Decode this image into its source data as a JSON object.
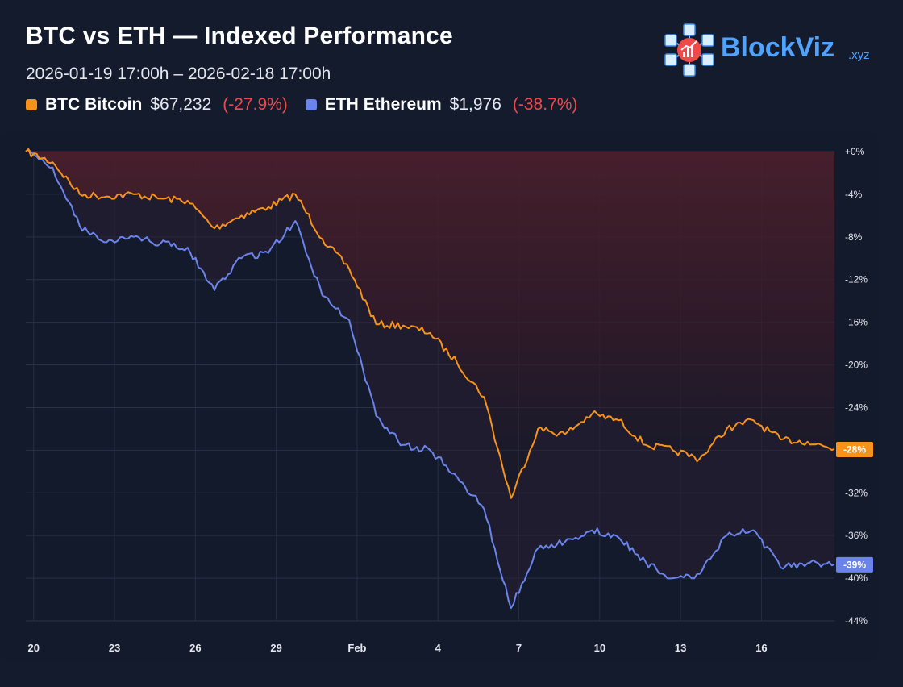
{
  "header": {
    "title": "BTC vs ETH — Indexed Performance",
    "subtitle": "2026-01-19 17:00h – 2026-02-18 17:00h"
  },
  "legend": [
    {
      "symbol": "BTC",
      "name": "Bitcoin",
      "price": "$67,232",
      "change": "(-27.9%)",
      "color": "#f7931a"
    },
    {
      "symbol": "ETH",
      "name": "Ethereum",
      "price": "$1,976",
      "change": "(-38.7%)",
      "color": "#6b84ec"
    }
  ],
  "brand": {
    "name": "BlockViz",
    "tld": ".xyz",
    "color": "#4fa3ff",
    "icon": "blockchain-network-icon"
  },
  "chart_data": {
    "type": "line",
    "y_unit": "%",
    "ylim": [
      -44,
      0
    ],
    "y_ticks": [
      0,
      -4,
      -8,
      -12,
      -16,
      -20,
      -24,
      -28,
      -32,
      -36,
      -40,
      -44
    ],
    "y_tick_labels": [
      "+0%",
      "-4%",
      "-8%",
      "-12%",
      "-16%",
      "-20%",
      "-24%",
      "-28%",
      "-32%",
      "-36%",
      "-40%",
      "-44%"
    ],
    "xlim": [
      "2026-01-19",
      "2026-02-18"
    ],
    "x_ticks": [
      {
        "date": "2026-01-20",
        "label": "20"
      },
      {
        "date": "2026-01-23",
        "label": "23"
      },
      {
        "date": "2026-01-26",
        "label": "26"
      },
      {
        "date": "2026-01-29",
        "label": "29"
      },
      {
        "date": "2026-02-01",
        "label": "Feb"
      },
      {
        "date": "2026-02-04",
        "label": "4"
      },
      {
        "date": "2026-02-07",
        "label": "7"
      },
      {
        "date": "2026-02-10",
        "label": "10"
      },
      {
        "date": "2026-02-13",
        "label": "13"
      },
      {
        "date": "2026-02-16",
        "label": "16"
      }
    ],
    "grid": true,
    "series": [
      {
        "name": "BTC",
        "color": "#f7931a",
        "end_label": "-28%",
        "x": [
          "2026-01-19",
          "2026-01-20",
          "2026-01-21",
          "2026-01-22",
          "2026-01-23",
          "2026-01-24",
          "2026-01-25",
          "2026-01-26",
          "2026-01-27",
          "2026-01-28",
          "2026-01-29",
          "2026-01-30",
          "2026-01-31",
          "2026-02-01",
          "2026-02-02",
          "2026-02-03",
          "2026-02-04",
          "2026-02-05",
          "2026-02-06",
          "2026-02-07",
          "2026-02-08",
          "2026-02-09",
          "2026-02-10",
          "2026-02-11",
          "2026-02-12",
          "2026-02-13",
          "2026-02-14",
          "2026-02-15",
          "2026-02-16",
          "2026-02-17",
          "2026-02-18"
        ],
        "y": [
          0.0,
          -1.0,
          -4.0,
          -4.2,
          -4.0,
          -4.4,
          -4.6,
          -7.2,
          -6.0,
          -5.2,
          -4.0,
          -8.2,
          -11.0,
          -16.2,
          -16.3,
          -17.0,
          -19.8,
          -23.0,
          -32.5,
          -26.0,
          -26.5,
          -24.6,
          -25.2,
          -27.5,
          -28.0,
          -28.8,
          -26.0,
          -25.2,
          -27.0,
          -27.2,
          -27.9
        ]
      },
      {
        "name": "ETH",
        "color": "#6b84ec",
        "end_label": "-39%",
        "x": [
          "2026-01-19",
          "2026-01-20",
          "2026-01-21",
          "2026-01-22",
          "2026-01-23",
          "2026-01-24",
          "2026-01-25",
          "2026-01-26",
          "2026-01-27",
          "2026-01-28",
          "2026-01-29",
          "2026-01-30",
          "2026-01-31",
          "2026-02-01",
          "2026-02-02",
          "2026-02-03",
          "2026-02-04",
          "2026-02-05",
          "2026-02-06",
          "2026-02-07",
          "2026-02-08",
          "2026-02-09",
          "2026-02-10",
          "2026-02-11",
          "2026-02-12",
          "2026-02-13",
          "2026-02-14",
          "2026-02-15",
          "2026-02-16",
          "2026-02-17",
          "2026-02-18"
        ],
        "y": [
          0.0,
          -1.5,
          -7.0,
          -8.5,
          -8.0,
          -8.6,
          -9.0,
          -13.0,
          -10.0,
          -9.5,
          -6.5,
          -13.5,
          -15.8,
          -24.8,
          -27.5,
          -28.0,
          -30.5,
          -33.5,
          -42.8,
          -37.2,
          -36.6,
          -35.5,
          -36.2,
          -38.5,
          -40.0,
          -39.6,
          -36.0,
          -35.5,
          -39.0,
          -38.6,
          -38.7
        ]
      }
    ]
  }
}
